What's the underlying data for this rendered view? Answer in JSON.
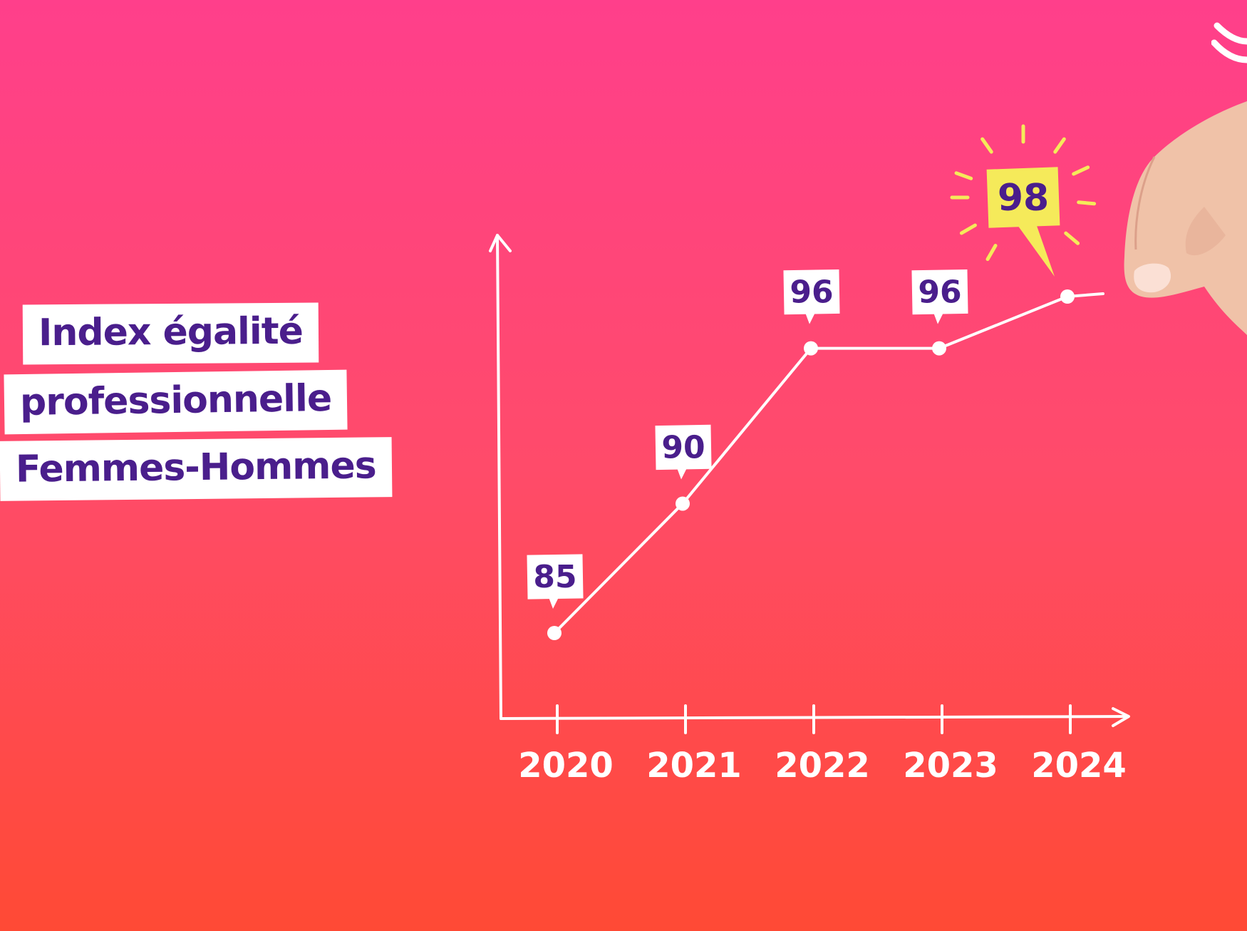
{
  "title": {
    "lines": [
      "Index égalité",
      "professionnelle",
      "Femmes-Hommes"
    ]
  },
  "colors": {
    "background_top": "#ff3f8b",
    "background_bottom": "#ff4a35",
    "title_text": "#4a1e8c",
    "label_text": "#4a1e8c",
    "highlight_label": "#f5ea5a",
    "line": "#ffffff"
  },
  "icons": [
    "brand-logo-icon",
    "hand-icon",
    "sparkle-rays-icon"
  ],
  "chart_data": {
    "type": "line",
    "title": "Index égalité professionnelle Femmes-Hommes",
    "categories": [
      "2020",
      "2021",
      "2022",
      "2023",
      "2024"
    ],
    "values": [
      85,
      90,
      96,
      96,
      98
    ],
    "data_labels": [
      "85",
      "90",
      "96",
      "96",
      "98"
    ],
    "highlight_index": 4,
    "ylim": [
      80,
      100
    ],
    "grid": false,
    "xlabel": "",
    "ylabel": ""
  }
}
